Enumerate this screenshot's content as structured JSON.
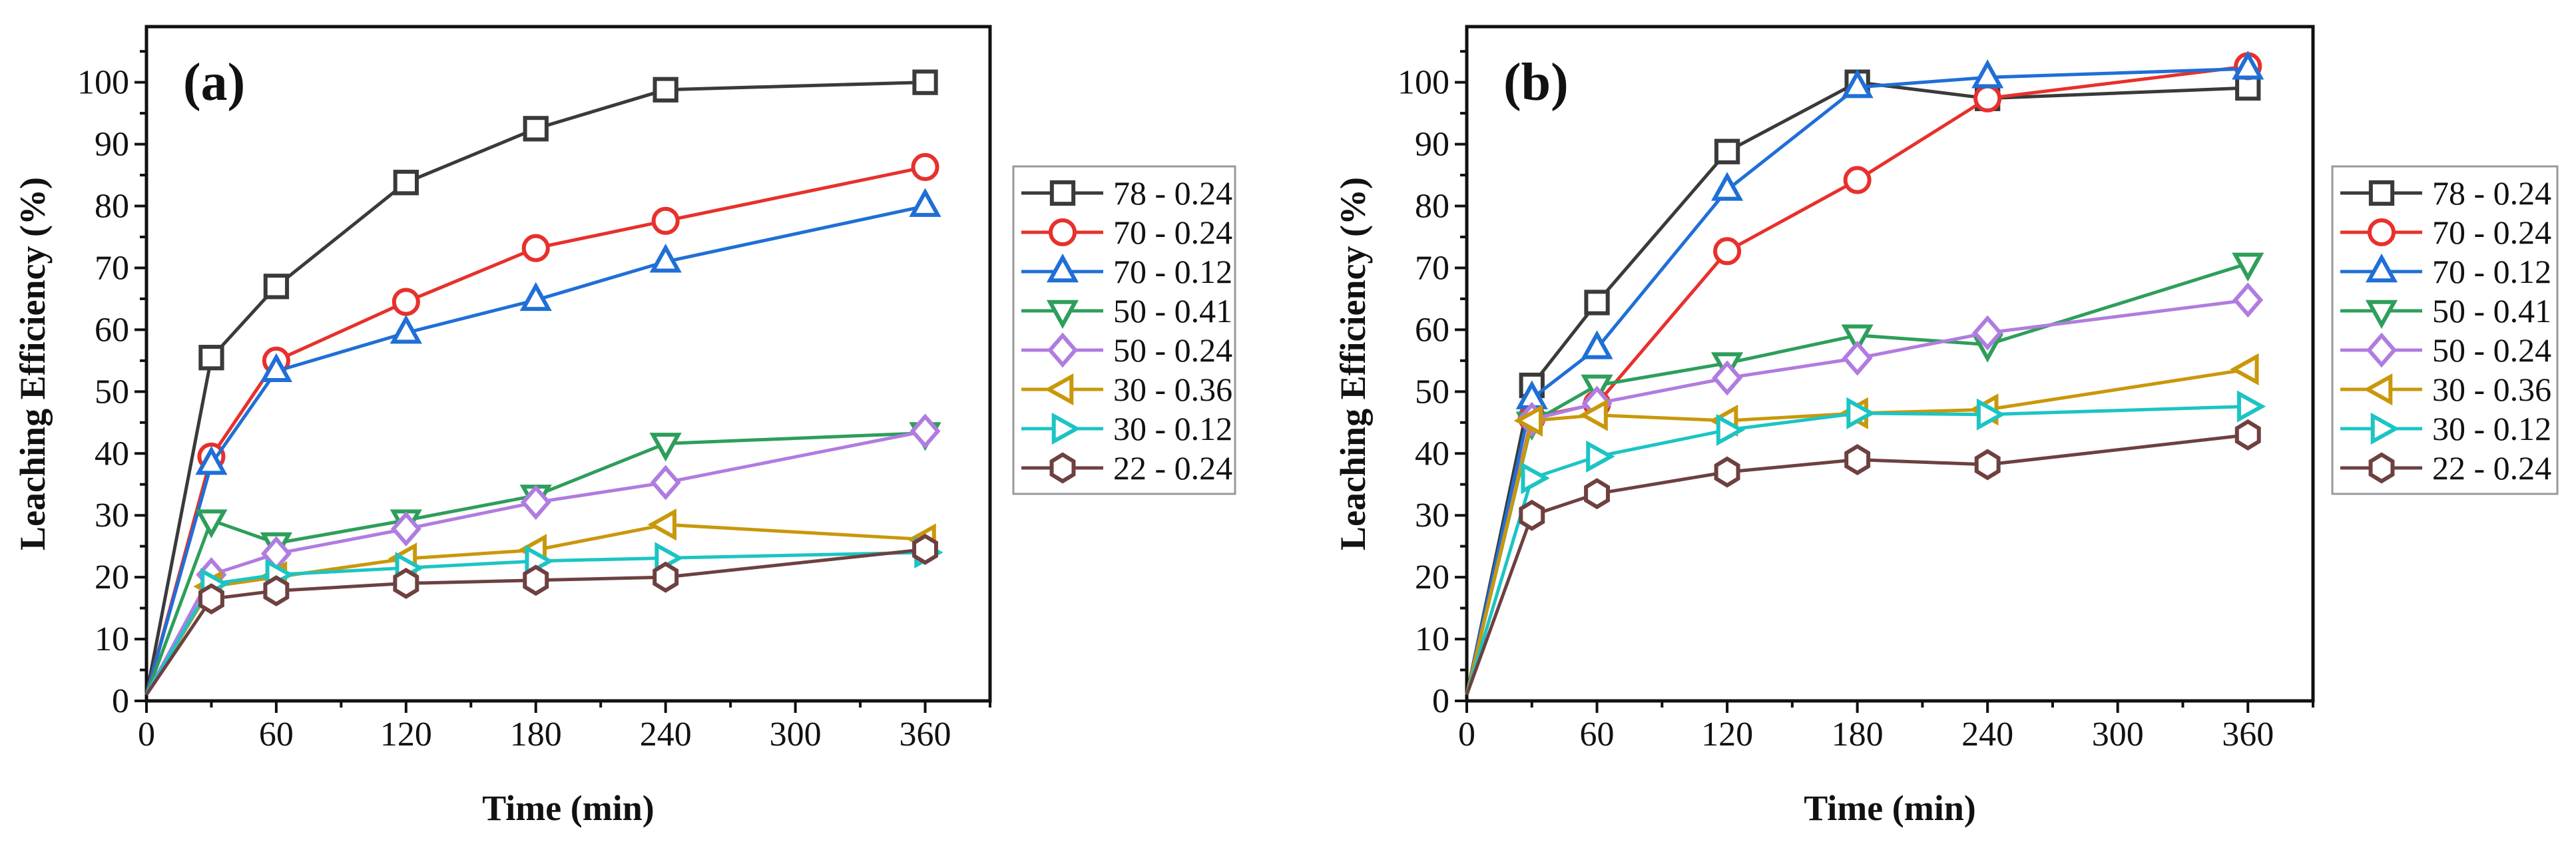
{
  "chart_data": [
    {
      "type": "line",
      "panel_label": "(a)",
      "xlabel": "Time (min)",
      "ylabel": "Leaching Efficiency (%)",
      "xlim": [
        0,
        390
      ],
      "ylim": [
        0,
        109
      ],
      "xticks": [
        0,
        60,
        120,
        180,
        240,
        300,
        360
      ],
      "yticks": [
        0,
        10,
        20,
        30,
        40,
        50,
        60,
        70,
        80,
        90,
        100
      ],
      "grid": false,
      "legend_position": "right",
      "x": [
        0,
        30,
        60,
        120,
        180,
        240,
        360
      ],
      "series": [
        {
          "name": "78 - 0.24",
          "marker": "square",
          "color": "#3a3a3a",
          "values": [
            1,
            55.5,
            67,
            83.8,
            92.5,
            98.8,
            100
          ]
        },
        {
          "name": "70 - 0.24",
          "marker": "circle",
          "color": "#e8302c",
          "values": [
            1,
            39.5,
            55,
            64.5,
            73.2,
            77.6,
            86.3
          ]
        },
        {
          "name": "70 - 0.12",
          "marker": "triangle-up",
          "color": "#1f6fd6",
          "values": [
            1,
            38.3,
            53.3,
            59.5,
            64.8,
            71,
            80
          ]
        },
        {
          "name": "50 - 0.41",
          "marker": "triangle-down",
          "color": "#2e9e5b",
          "values": [
            1,
            29.2,
            25.5,
            29.2,
            33.2,
            41.6,
            43.3
          ]
        },
        {
          "name": "50 - 0.24",
          "marker": "diamond",
          "color": "#b07ce0",
          "values": [
            1,
            20.4,
            23.8,
            27.8,
            32.1,
            35.3,
            43.6
          ]
        },
        {
          "name": "30 - 0.36",
          "marker": "triangle-left",
          "color": "#c9980a",
          "values": [
            1,
            18.5,
            20,
            23,
            24.4,
            28.5,
            26.1
          ]
        },
        {
          "name": "30 - 0.12",
          "marker": "triangle-right",
          "color": "#1cc4c4",
          "values": [
            1,
            18.9,
            20.4,
            21.5,
            22.6,
            23.1,
            24
          ]
        },
        {
          "name": "22 - 0.24",
          "marker": "hexagon",
          "color": "#6e4040",
          "values": [
            1,
            16.5,
            17.8,
            19,
            19.5,
            20,
            24.5
          ]
        }
      ]
    },
    {
      "type": "line",
      "panel_label": "(b)",
      "xlabel": "Time (min)",
      "ylabel": "Leaching Efficiency (%)",
      "xlim": [
        0,
        390
      ],
      "ylim": [
        0,
        109
      ],
      "xticks": [
        0,
        60,
        120,
        180,
        240,
        300,
        360
      ],
      "yticks": [
        0,
        10,
        20,
        30,
        40,
        50,
        60,
        70,
        80,
        90,
        100
      ],
      "grid": false,
      "legend_position": "right",
      "x": [
        0,
        30,
        60,
        120,
        180,
        240,
        360
      ],
      "series": [
        {
          "name": "78 - 0.24",
          "marker": "square",
          "color": "#3a3a3a",
          "values": [
            1,
            51,
            64.4,
            88.8,
            100,
            97.4,
            99.1
          ]
        },
        {
          "name": "70 - 0.24",
          "marker": "circle",
          "color": "#e8302c",
          "values": [
            1,
            45.8,
            48,
            72.7,
            84.2,
            97.4,
            102.6
          ]
        },
        {
          "name": "70 - 0.12",
          "marker": "triangle-up",
          "color": "#1f6fd6",
          "values": [
            1,
            48.9,
            57,
            82.6,
            99.2,
            100.8,
            102.2
          ]
        },
        {
          "name": "50 - 0.41",
          "marker": "triangle-down",
          "color": "#2e9e5b",
          "values": [
            1,
            45,
            51,
            54.6,
            59.1,
            57.6,
            70.7
          ]
        },
        {
          "name": "50 - 0.24",
          "marker": "diamond",
          "color": "#b07ce0",
          "values": [
            1,
            45.5,
            48.1,
            52.2,
            55.4,
            59.5,
            64.8
          ]
        },
        {
          "name": "30 - 0.36",
          "marker": "triangle-left",
          "color": "#c9980a",
          "values": [
            1,
            45.3,
            46.2,
            45.3,
            46.5,
            47.1,
            53.6
          ]
        },
        {
          "name": "30 - 0.12",
          "marker": "triangle-right",
          "color": "#1cc4c4",
          "values": [
            1,
            36,
            39.5,
            43.8,
            46.5,
            46.3,
            47.6
          ]
        },
        {
          "name": "22 - 0.24",
          "marker": "hexagon",
          "color": "#6e4040",
          "values": [
            1,
            30,
            33.5,
            37,
            39,
            38.2,
            43
          ]
        }
      ]
    }
  ]
}
